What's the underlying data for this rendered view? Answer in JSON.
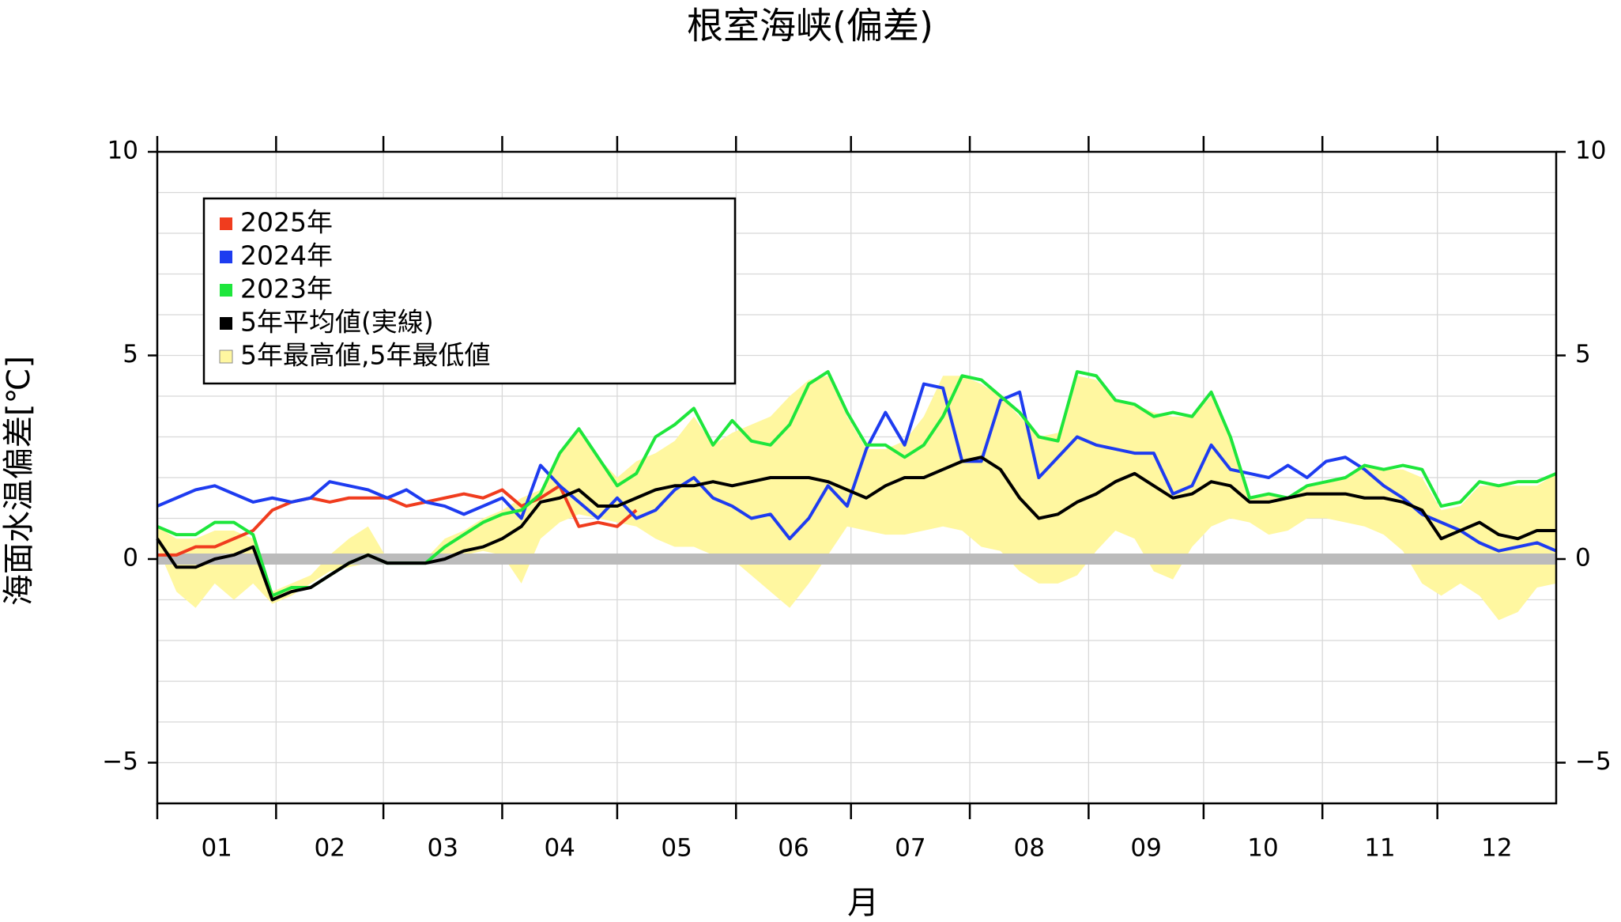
{
  "chart_data": {
    "type": "line",
    "title": "根室海峡(偏差)",
    "x_label": "月",
    "y_label": "海面水温偏差[℃]",
    "xlim": [
      0,
      365
    ],
    "xticks": [
      {
        "value": 0,
        "label": "01"
      },
      {
        "value": 31,
        "label": "02"
      },
      {
        "value": 59,
        "label": "03"
      },
      {
        "value": 90,
        "label": "04"
      },
      {
        "value": 120,
        "label": "05"
      },
      {
        "value": 151,
        "label": "06"
      },
      {
        "value": 181,
        "label": "07"
      },
      {
        "value": 212,
        "label": "08"
      },
      {
        "value": 243,
        "label": "09"
      },
      {
        "value": 273,
        "label": "10"
      },
      {
        "value": 304,
        "label": "11"
      },
      {
        "value": 334,
        "label": "12"
      }
    ],
    "ylim": [
      -6,
      10
    ],
    "yticks": [
      {
        "value": -5,
        "label": "−5"
      },
      0,
      5,
      10
    ],
    "minor_yticks": [
      -6,
      -5,
      -4,
      -3,
      -2,
      -1,
      0,
      1,
      2,
      3,
      4,
      5,
      6,
      7,
      8,
      9,
      10
    ],
    "grid": true,
    "legend": "top-left",
    "x": [
      0,
      5,
      10,
      15,
      20,
      25,
      30,
      35,
      40,
      45,
      50,
      55,
      60,
      65,
      70,
      75,
      80,
      85,
      90,
      95,
      100,
      105,
      110,
      115,
      120,
      125,
      130,
      135,
      140,
      145,
      150,
      155,
      160,
      165,
      170,
      175,
      180,
      185,
      190,
      195,
      200,
      205,
      210,
      215,
      220,
      225,
      230,
      235,
      240,
      245,
      250,
      255,
      260,
      265,
      270,
      275,
      280,
      285,
      290,
      295,
      300,
      305,
      310,
      315,
      320,
      325,
      330,
      335,
      340,
      345,
      350,
      355,
      360,
      365
    ],
    "band": {
      "name": "5年最高値,5年最低値",
      "color": "#fff7a0",
      "upper": [
        0.8,
        0.5,
        0.5,
        0.7,
        0.7,
        0.5,
        -0.8,
        -0.6,
        -0.4,
        0.1,
        0.5,
        0.8,
        0.0,
        0.0,
        0.0,
        0.5,
        0.7,
        1.0,
        1.2,
        1.5,
        1.7,
        2.6,
        3.2,
        2.5,
        2.0,
        2.4,
        2.6,
        2.9,
        3.5,
        2.8,
        3.1,
        3.3,
        3.5,
        4.0,
        4.4,
        4.5,
        3.5,
        2.7,
        2.7,
        2.9,
        3.5,
        4.5,
        4.5,
        4.3,
        4.0,
        3.5,
        3.0,
        3.1,
        4.5,
        4.4,
        3.9,
        3.8,
        3.6,
        3.5,
        3.5,
        4.0,
        3.0,
        1.5,
        1.6,
        1.5,
        1.8,
        1.9,
        2.0,
        2.3,
        2.2,
        2.2,
        2.0,
        1.2,
        1.3,
        1.8,
        1.8,
        1.8,
        1.8,
        2.1
      ],
      "lower": [
        0.3,
        -0.8,
        -1.2,
        -0.6,
        -1.0,
        -0.6,
        -1.1,
        -0.9,
        -0.6,
        -0.3,
        -0.2,
        -0.1,
        -0.1,
        -0.1,
        -0.1,
        -0.1,
        0.1,
        0.2,
        0.1,
        -0.6,
        0.5,
        0.9,
        1.1,
        1.0,
        0.9,
        0.8,
        0.5,
        0.3,
        0.3,
        0.1,
        0.0,
        -0.4,
        -0.8,
        -1.2,
        -0.6,
        0.1,
        0.8,
        0.7,
        0.6,
        0.6,
        0.7,
        0.8,
        0.7,
        0.3,
        0.2,
        -0.3,
        -0.6,
        -0.6,
        -0.4,
        0.2,
        0.7,
        0.5,
        -0.3,
        -0.5,
        0.3,
        0.8,
        1.0,
        0.9,
        0.6,
        0.7,
        1.0,
        1.0,
        0.9,
        0.8,
        0.6,
        0.2,
        -0.6,
        -0.9,
        -0.6,
        -0.9,
        -1.5,
        -1.3,
        -0.7,
        -0.6
      ]
    },
    "series": [
      {
        "name": "2025年",
        "color": "#f03c1e",
        "values": [
          0.1,
          0.1,
          0.3,
          0.3,
          0.5,
          0.7,
          1.2,
          1.4,
          1.5,
          1.4,
          1.5,
          1.5,
          1.5,
          1.3,
          1.4,
          1.5,
          1.6,
          1.5,
          1.7,
          1.3,
          1.5,
          1.8,
          0.8,
          0.9,
          0.8,
          1.2,
          null,
          null,
          null,
          null,
          null,
          null,
          null,
          null,
          null,
          null,
          null,
          null,
          null,
          null,
          null,
          null,
          null,
          null,
          null,
          null,
          null,
          null,
          null,
          null,
          null,
          null,
          null,
          null,
          null,
          null,
          null,
          null,
          null,
          null,
          null,
          null,
          null,
          null,
          null,
          null,
          null,
          null,
          null,
          null,
          null,
          null,
          null,
          null
        ]
      },
      {
        "name": "2024年",
        "color": "#1e3cf0",
        "values": [
          1.3,
          1.5,
          1.7,
          1.8,
          1.6,
          1.4,
          1.5,
          1.4,
          1.5,
          1.9,
          1.8,
          1.7,
          1.5,
          1.7,
          1.4,
          1.3,
          1.1,
          1.3,
          1.5,
          1.0,
          2.3,
          1.8,
          1.4,
          1.0,
          1.5,
          1.0,
          1.2,
          1.7,
          2.0,
          1.5,
          1.3,
          1.0,
          1.1,
          0.5,
          1.0,
          1.8,
          1.3,
          2.7,
          3.6,
          2.8,
          4.3,
          4.2,
          2.4,
          2.4,
          3.9,
          4.1,
          2.0,
          2.5,
          3.0,
          2.8,
          2.7,
          2.6,
          2.6,
          1.6,
          1.8,
          2.8,
          2.2,
          2.1,
          2.0,
          2.3,
          2.0,
          2.4,
          2.5,
          2.2,
          1.8,
          1.5,
          1.1,
          0.9,
          0.7,
          0.4,
          0.2,
          0.3,
          0.4,
          0.2
        ]
      },
      {
        "name": "2023年",
        "color": "#1ee63c",
        "values": [
          0.8,
          0.6,
          0.6,
          0.9,
          0.9,
          0.6,
          -0.9,
          -0.7,
          -0.7,
          -0.4,
          -0.1,
          0.1,
          -0.1,
          -0.1,
          -0.1,
          0.3,
          0.6,
          0.9,
          1.1,
          1.2,
          1.6,
          2.6,
          3.2,
          2.5,
          1.8,
          2.1,
          3.0,
          3.3,
          3.7,
          2.8,
          3.4,
          2.9,
          2.8,
          3.3,
          4.3,
          4.6,
          3.6,
          2.8,
          2.8,
          2.5,
          2.8,
          3.5,
          4.5,
          4.4,
          4.0,
          3.6,
          3.0,
          2.9,
          4.6,
          4.5,
          3.9,
          3.8,
          3.5,
          3.6,
          3.5,
          4.1,
          3.0,
          1.5,
          1.6,
          1.5,
          1.8,
          1.9,
          2.0,
          2.3,
          2.2,
          2.3,
          2.2,
          1.3,
          1.4,
          1.9,
          1.8,
          1.9,
          1.9,
          2.1
        ]
      },
      {
        "name": "5年平均値(実線)",
        "color": "#000000",
        "values": [
          0.5,
          -0.2,
          -0.2,
          0.0,
          0.1,
          0.3,
          -1.0,
          -0.8,
          -0.7,
          -0.4,
          -0.1,
          0.1,
          -0.1,
          -0.1,
          -0.1,
          0.0,
          0.2,
          0.3,
          0.5,
          0.8,
          1.4,
          1.5,
          1.7,
          1.3,
          1.3,
          1.5,
          1.7,
          1.8,
          1.8,
          1.9,
          1.8,
          1.9,
          2.0,
          2.0,
          2.0,
          1.9,
          1.7,
          1.5,
          1.8,
          2.0,
          2.0,
          2.2,
          2.4,
          2.5,
          2.2,
          1.5,
          1.0,
          1.1,
          1.4,
          1.6,
          1.9,
          2.1,
          1.8,
          1.5,
          1.6,
          1.9,
          1.8,
          1.4,
          1.4,
          1.5,
          1.6,
          1.6,
          1.6,
          1.5,
          1.5,
          1.4,
          1.2,
          0.5,
          0.7,
          0.9,
          0.6,
          0.5,
          0.7,
          0.7
        ]
      }
    ]
  }
}
